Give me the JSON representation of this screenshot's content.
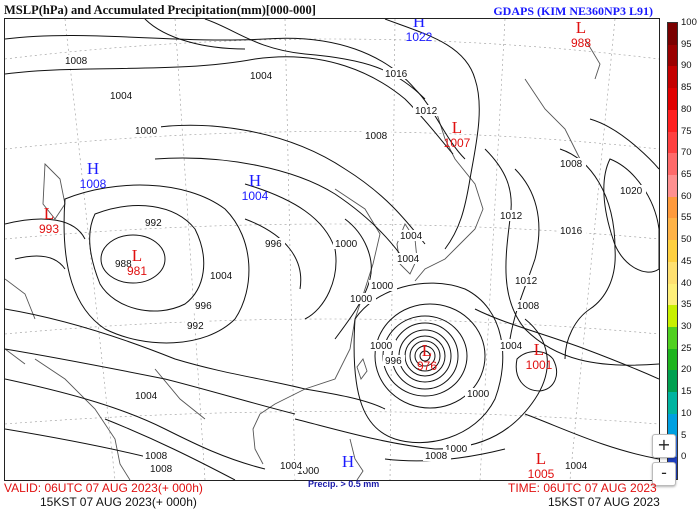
{
  "header": {
    "title": "MSLP(hPa) and Accumulated Precipitation(mm)[000-000]",
    "model": "GDAPS (KIM NE360NP3 L91)"
  },
  "footer": {
    "valid_utc": "VALID: 06UTC 07 AUG 2023(+ 000h)",
    "valid_kst": "15KST 07 AUG 2023(+ 000h)",
    "time_utc": "TIME: 06UTC 07 AUG 2023",
    "time_kst": "15KST 07 AUG 2023",
    "precip_note": "Precip. > 0.5 mm"
  },
  "colors": {
    "low": "#e01010",
    "high": "#1a1aff",
    "isobar": "#111111",
    "coast": "#555555"
  },
  "colorbar": {
    "levels": [
      {
        "label": "100",
        "color": "#7a0000"
      },
      {
        "label": "95",
        "color": "#9a0000"
      },
      {
        "label": "90",
        "color": "#c40000"
      },
      {
        "label": "85",
        "color": "#e00000"
      },
      {
        "label": "80",
        "color": "#ff2020"
      },
      {
        "label": "75",
        "color": "#ff4040"
      },
      {
        "label": "70",
        "color": "#ff6a6a"
      },
      {
        "label": "65",
        "color": "#ff9090"
      },
      {
        "label": "60",
        "color": "#ff9a3c"
      },
      {
        "label": "55",
        "color": "#ffb347"
      },
      {
        "label": "50",
        "color": "#ffd040"
      },
      {
        "label": "45",
        "color": "#ffe070"
      },
      {
        "label": "40",
        "color": "#fff07a"
      },
      {
        "label": "35",
        "color": "#c8f000"
      },
      {
        "label": "30",
        "color": "#50d020"
      },
      {
        "label": "25",
        "color": "#1eb41e"
      },
      {
        "label": "20",
        "color": "#00a050"
      },
      {
        "label": "15",
        "color": "#00b4a0"
      },
      {
        "label": "10",
        "color": "#00a0e0"
      },
      {
        "label": "5",
        "color": "#3c78f0"
      },
      {
        "label": "0",
        "color": "#2040c0"
      }
    ]
  },
  "pressure_centers": [
    {
      "type": "L",
      "value": "988"
    },
    {
      "type": "H",
      "value": "1022"
    },
    {
      "type": "L",
      "value": "1007"
    },
    {
      "type": "H",
      "value": "1008"
    },
    {
      "type": "H",
      "value": "1004"
    },
    {
      "type": "L",
      "value": "993"
    },
    {
      "type": "L",
      "value": "981"
    },
    {
      "type": "L",
      "value": "976"
    },
    {
      "type": "L",
      "value": "1001"
    },
    {
      "type": "H",
      "value": ""
    },
    {
      "type": "L",
      "value": "1005"
    }
  ],
  "isobar_labels": [
    "1008",
    "1008",
    "1004",
    "1004",
    "1000",
    "1016",
    "1012",
    "1008",
    "1008",
    "1012",
    "1020",
    "1016",
    "1012",
    "1008",
    "1004",
    "996",
    "992",
    "988",
    "1000",
    "1004",
    "996",
    "992",
    "1000",
    "1004",
    "1000",
    "1000",
    "996",
    "1000",
    "1004",
    "1008",
    "1004",
    "1004",
    "1004",
    "1000",
    "1000",
    "1008"
  ],
  "zoom": {
    "in": "+",
    "out": "-"
  }
}
